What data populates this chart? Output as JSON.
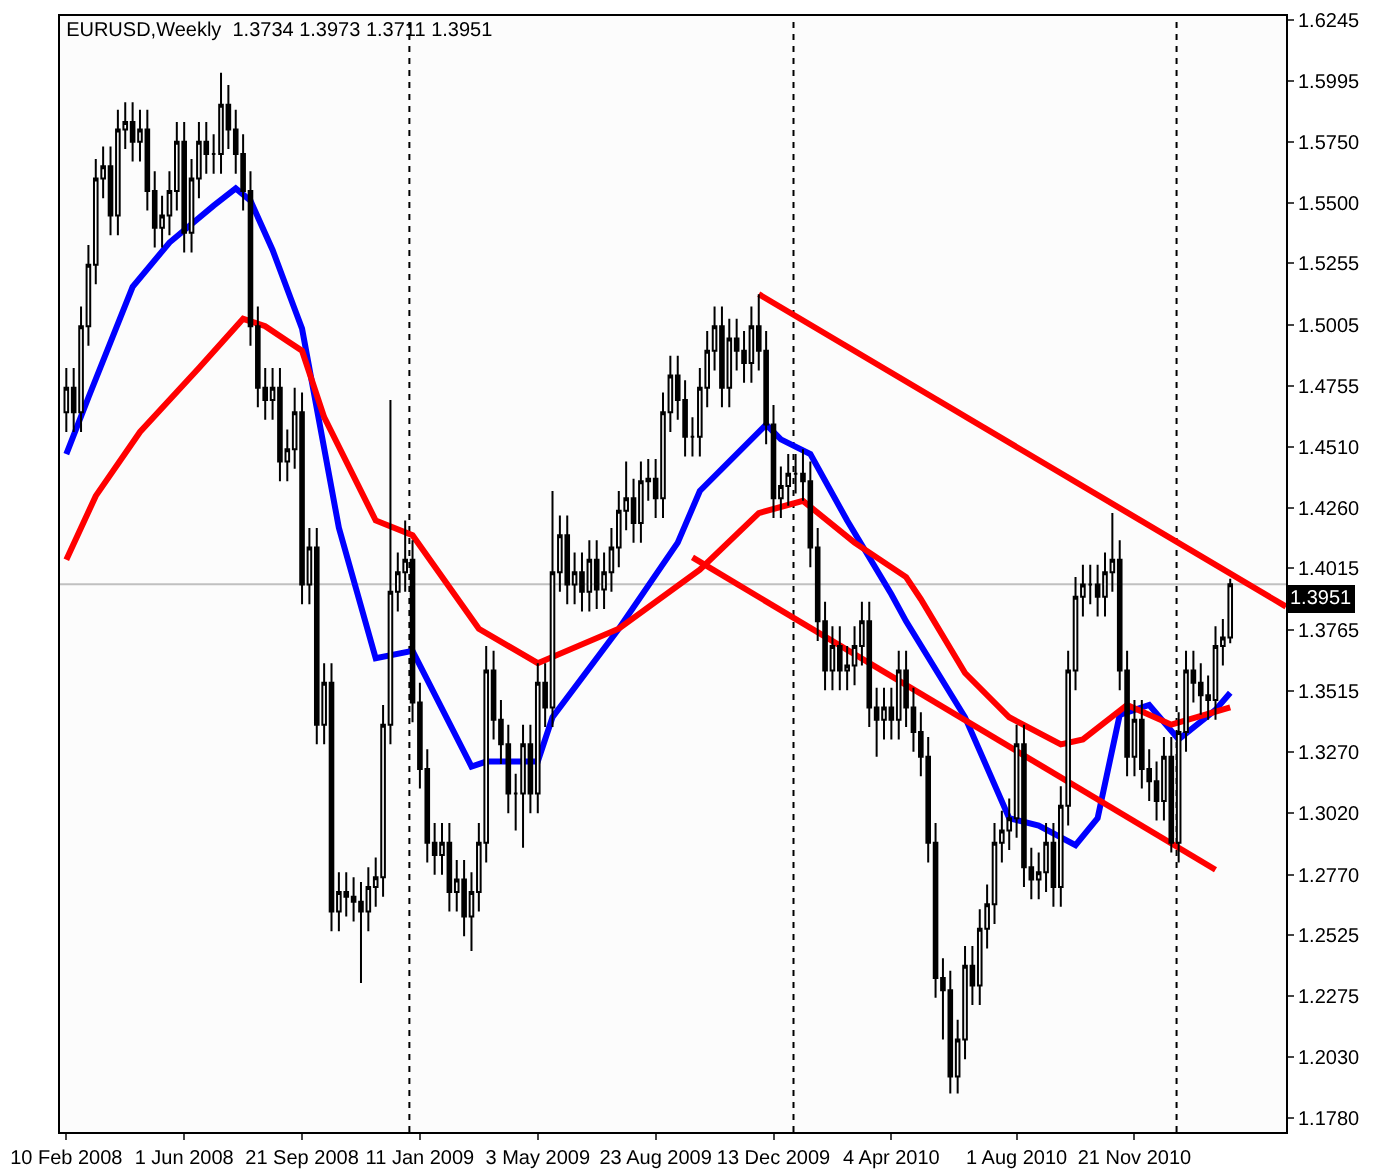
{
  "chart_data": {
    "type": "candlestick",
    "title": "EURUSD,Weekly  1.3734 1.3973 1.3711 1.3951",
    "color": "#000000",
    "x": [
      "2008-02-10",
      "2008-02-17",
      "2008-02-24",
      "2008-03-02",
      "2008-03-09",
      "2008-03-16",
      "2008-03-23",
      "2008-03-30",
      "2008-04-06",
      "2008-04-13",
      "2008-04-20",
      "2008-04-27",
      "2008-05-04",
      "2008-05-11",
      "2008-05-18",
      "2008-05-25",
      "2008-06-01",
      "2008-06-08",
      "2008-06-15",
      "2008-06-22",
      "2008-06-29",
      "2008-07-06",
      "2008-07-13",
      "2008-07-20",
      "2008-07-27",
      "2008-08-03",
      "2008-08-10",
      "2008-08-17",
      "2008-08-24",
      "2008-08-31",
      "2008-09-07",
      "2008-09-14",
      "2008-09-21",
      "2008-09-28",
      "2008-10-05",
      "2008-10-12",
      "2008-10-19",
      "2008-10-26",
      "2008-11-02",
      "2008-11-09",
      "2008-11-16",
      "2008-11-23",
      "2008-11-30",
      "2008-12-07",
      "2008-12-14",
      "2008-12-21",
      "2008-12-28",
      "2009-01-04",
      "2009-01-11",
      "2009-01-18",
      "2009-01-25",
      "2009-02-01",
      "2009-02-08",
      "2009-02-15",
      "2009-02-22",
      "2009-03-01",
      "2009-03-08",
      "2009-03-15",
      "2009-03-22",
      "2009-03-29",
      "2009-04-05",
      "2009-04-12",
      "2009-04-19",
      "2009-04-26",
      "2009-05-03",
      "2009-05-10",
      "2009-05-17",
      "2009-05-24",
      "2009-05-31",
      "2009-06-07",
      "2009-06-14",
      "2009-06-21",
      "2009-06-28",
      "2009-07-05",
      "2009-07-12",
      "2009-07-19",
      "2009-07-26",
      "2009-08-02",
      "2009-08-09",
      "2009-08-16",
      "2009-08-23",
      "2009-08-30",
      "2009-09-06",
      "2009-09-13",
      "2009-09-20",
      "2009-09-27",
      "2009-10-04",
      "2009-10-11",
      "2009-10-18",
      "2009-10-25",
      "2009-11-01",
      "2009-11-08",
      "2009-11-15",
      "2009-11-22",
      "2009-11-29",
      "2009-12-06",
      "2009-12-13",
      "2009-12-20",
      "2009-12-27",
      "2010-01-03",
      "2010-01-10",
      "2010-01-17",
      "2010-01-24",
      "2010-01-31",
      "2010-02-07",
      "2010-02-14",
      "2010-02-21",
      "2010-02-28",
      "2010-03-07",
      "2010-03-14",
      "2010-03-21",
      "2010-03-28",
      "2010-04-04",
      "2010-04-11",
      "2010-04-18",
      "2010-04-25",
      "2010-05-02",
      "2010-05-09",
      "2010-05-16",
      "2010-05-23",
      "2010-05-30",
      "2010-06-06",
      "2010-06-13",
      "2010-06-20",
      "2010-06-27",
      "2010-07-04",
      "2010-07-11",
      "2010-07-18",
      "2010-07-25",
      "2010-08-01",
      "2010-08-08",
      "2010-08-15",
      "2010-08-22",
      "2010-08-29",
      "2010-09-05",
      "2010-09-12",
      "2010-09-19",
      "2010-09-26",
      "2010-10-03",
      "2010-10-10",
      "2010-10-17",
      "2010-10-24",
      "2010-10-31",
      "2010-11-07",
      "2010-11-14",
      "2010-11-21",
      "2010-11-28",
      "2010-12-05",
      "2010-12-12",
      "2010-12-19",
      "2010-12-26",
      "2011-01-02",
      "2011-01-09",
      "2011-01-16",
      "2011-01-23",
      "2011-01-30",
      "2011-02-06",
      "2011-02-13",
      "2011-02-20"
    ],
    "ohlc": [
      [
        1.465,
        1.483,
        1.457,
        1.475
      ],
      [
        1.475,
        1.483,
        1.457,
        1.465
      ],
      [
        1.465,
        1.508,
        1.457,
        1.5
      ],
      [
        1.5,
        1.533,
        1.492,
        1.525
      ],
      [
        1.525,
        1.568,
        1.517,
        1.56
      ],
      [
        1.56,
        1.573,
        1.552,
        1.565
      ],
      [
        1.565,
        1.573,
        1.537,
        1.545
      ],
      [
        1.545,
        1.588,
        1.537,
        1.58
      ],
      [
        1.58,
        1.591,
        1.572,
        1.583
      ],
      [
        1.583,
        1.591,
        1.567,
        1.575
      ],
      [
        1.575,
        1.588,
        1.567,
        1.58
      ],
      [
        1.58,
        1.588,
        1.547,
        1.555
      ],
      [
        1.555,
        1.563,
        1.532,
        1.54
      ],
      [
        1.54,
        1.553,
        1.532,
        1.545
      ],
      [
        1.545,
        1.563,
        1.537,
        1.555
      ],
      [
        1.555,
        1.583,
        1.547,
        1.575
      ],
      [
        1.575,
        1.583,
        1.53,
        1.538
      ],
      [
        1.538,
        1.568,
        1.53,
        1.56
      ],
      [
        1.56,
        1.583,
        1.552,
        1.575
      ],
      [
        1.575,
        1.583,
        1.562,
        1.57
      ],
      [
        1.57,
        1.578,
        1.562,
        1.57
      ],
      [
        1.57,
        1.603,
        1.562,
        1.59
      ],
      [
        1.59,
        1.598,
        1.572,
        1.58
      ],
      [
        1.58,
        1.588,
        1.562,
        1.57
      ],
      [
        1.57,
        1.578,
        1.547,
        1.555
      ],
      [
        1.555,
        1.563,
        1.492,
        1.5
      ],
      [
        1.5,
        1.508,
        1.467,
        1.475
      ],
      [
        1.475,
        1.483,
        1.462,
        1.47
      ],
      [
        1.47,
        1.483,
        1.462,
        1.475
      ],
      [
        1.475,
        1.483,
        1.437,
        1.445
      ],
      [
        1.445,
        1.458,
        1.437,
        1.45
      ],
      [
        1.45,
        1.475,
        1.442,
        1.465
      ],
      [
        1.465,
        1.473,
        1.387,
        1.395
      ],
      [
        1.395,
        1.418,
        1.387,
        1.41
      ],
      [
        1.41,
        1.418,
        1.33,
        1.338
      ],
      [
        1.338,
        1.363,
        1.33,
        1.355
      ],
      [
        1.355,
        1.363,
        1.254,
        1.262
      ],
      [
        1.262,
        1.278,
        1.254,
        1.27
      ],
      [
        1.27,
        1.278,
        1.26,
        1.268
      ],
      [
        1.268,
        1.276,
        1.258,
        1.266
      ],
      [
        1.266,
        1.274,
        1.233,
        1.262
      ],
      [
        1.262,
        1.28,
        1.254,
        1.272
      ],
      [
        1.272,
        1.284,
        1.264,
        1.276
      ],
      [
        1.276,
        1.346,
        1.268,
        1.338
      ],
      [
        1.338,
        1.47,
        1.33,
        1.392
      ],
      [
        1.392,
        1.408,
        1.384,
        1.4
      ],
      [
        1.4,
        1.421,
        1.392,
        1.405
      ],
      [
        1.405,
        1.413,
        1.339,
        1.347
      ],
      [
        1.347,
        1.355,
        1.312,
        1.32
      ],
      [
        1.32,
        1.328,
        1.282,
        1.29
      ],
      [
        1.29,
        1.298,
        1.277,
        1.285
      ],
      [
        1.285,
        1.298,
        1.277,
        1.29
      ],
      [
        1.29,
        1.298,
        1.262,
        1.27
      ],
      [
        1.27,
        1.283,
        1.262,
        1.275
      ],
      [
        1.275,
        1.283,
        1.252,
        1.26
      ],
      [
        1.26,
        1.278,
        1.246,
        1.27
      ],
      [
        1.27,
        1.298,
        1.262,
        1.29
      ],
      [
        1.29,
        1.37,
        1.282,
        1.36
      ],
      [
        1.36,
        1.368,
        1.332,
        1.34
      ],
      [
        1.34,
        1.348,
        1.322,
        1.33
      ],
      [
        1.33,
        1.338,
        1.302,
        1.31
      ],
      [
        1.31,
        1.318,
        1.295,
        1.31
      ],
      [
        1.31,
        1.338,
        1.288,
        1.33
      ],
      [
        1.33,
        1.338,
        1.302,
        1.31
      ],
      [
        1.31,
        1.363,
        1.302,
        1.355
      ],
      [
        1.355,
        1.363,
        1.337,
        1.345
      ],
      [
        1.345,
        1.433,
        1.337,
        1.4
      ],
      [
        1.4,
        1.423,
        1.392,
        1.415
      ],
      [
        1.415,
        1.423,
        1.387,
        1.395
      ],
      [
        1.395,
        1.408,
        1.387,
        1.4
      ],
      [
        1.4,
        1.408,
        1.384,
        1.392
      ],
      [
        1.392,
        1.413,
        1.384,
        1.405
      ],
      [
        1.405,
        1.413,
        1.385,
        1.393
      ],
      [
        1.393,
        1.408,
        1.385,
        1.4
      ],
      [
        1.4,
        1.418,
        1.392,
        1.41
      ],
      [
        1.41,
        1.433,
        1.402,
        1.425
      ],
      [
        1.425,
        1.445,
        1.417,
        1.43
      ],
      [
        1.43,
        1.438,
        1.412,
        1.42
      ],
      [
        1.42,
        1.445,
        1.412,
        1.437
      ],
      [
        1.437,
        1.446,
        1.429,
        1.438
      ],
      [
        1.438,
        1.446,
        1.422,
        1.43
      ],
      [
        1.43,
        1.473,
        1.422,
        1.465
      ],
      [
        1.465,
        1.488,
        1.457,
        1.48
      ],
      [
        1.48,
        1.488,
        1.462,
        1.47
      ],
      [
        1.47,
        1.478,
        1.447,
        1.455
      ],
      [
        1.455,
        1.463,
        1.447,
        1.455
      ],
      [
        1.455,
        1.483,
        1.447,
        1.475
      ],
      [
        1.475,
        1.498,
        1.467,
        1.49
      ],
      [
        1.49,
        1.508,
        1.482,
        1.5
      ],
      [
        1.5,
        1.508,
        1.467,
        1.475
      ],
      [
        1.475,
        1.503,
        1.467,
        1.495
      ],
      [
        1.495,
        1.503,
        1.482,
        1.49
      ],
      [
        1.49,
        1.498,
        1.477,
        1.485
      ],
      [
        1.485,
        1.508,
        1.477,
        1.5
      ],
      [
        1.5,
        1.513,
        1.482,
        1.49
      ],
      [
        1.49,
        1.498,
        1.452,
        1.46
      ],
      [
        1.46,
        1.468,
        1.422,
        1.43
      ],
      [
        1.43,
        1.443,
        1.422,
        1.435
      ],
      [
        1.435,
        1.448,
        1.427,
        1.44
      ],
      [
        1.44,
        1.448,
        1.432,
        1.44
      ],
      [
        1.44,
        1.45,
        1.429,
        1.437
      ],
      [
        1.437,
        1.445,
        1.402,
        1.41
      ],
      [
        1.41,
        1.418,
        1.372,
        1.38
      ],
      [
        1.38,
        1.388,
        1.352,
        1.36
      ],
      [
        1.36,
        1.378,
        1.352,
        1.37
      ],
      [
        1.37,
        1.378,
        1.352,
        1.36
      ],
      [
        1.36,
        1.37,
        1.352,
        1.362
      ],
      [
        1.362,
        1.378,
        1.354,
        1.37
      ],
      [
        1.37,
        1.388,
        1.362,
        1.38
      ],
      [
        1.38,
        1.388,
        1.337,
        1.345
      ],
      [
        1.345,
        1.353,
        1.325,
        1.34
      ],
      [
        1.34,
        1.353,
        1.332,
        1.345
      ],
      [
        1.345,
        1.353,
        1.332,
        1.34
      ],
      [
        1.34,
        1.368,
        1.332,
        1.36
      ],
      [
        1.36,
        1.368,
        1.337,
        1.345
      ],
      [
        1.345,
        1.353,
        1.327,
        1.335
      ],
      [
        1.335,
        1.343,
        1.317,
        1.325
      ],
      [
        1.325,
        1.333,
        1.282,
        1.29
      ],
      [
        1.29,
        1.298,
        1.227,
        1.235
      ],
      [
        1.235,
        1.243,
        1.21,
        1.23
      ],
      [
        1.23,
        1.238,
        1.188,
        1.195
      ],
      [
        1.195,
        1.218,
        1.188,
        1.21
      ],
      [
        1.21,
        1.248,
        1.202,
        1.24
      ],
      [
        1.24,
        1.248,
        1.224,
        1.232
      ],
      [
        1.232,
        1.263,
        1.224,
        1.255
      ],
      [
        1.255,
        1.273,
        1.247,
        1.265
      ],
      [
        1.265,
        1.298,
        1.257,
        1.29
      ],
      [
        1.29,
        1.303,
        1.282,
        1.295
      ],
      [
        1.295,
        1.308,
        1.287,
        1.3
      ],
      [
        1.3,
        1.338,
        1.292,
        1.33
      ],
      [
        1.33,
        1.338,
        1.272,
        1.28
      ],
      [
        1.28,
        1.288,
        1.267,
        1.275
      ],
      [
        1.275,
        1.286,
        1.267,
        1.278
      ],
      [
        1.278,
        1.298,
        1.27,
        1.29
      ],
      [
        1.29,
        1.298,
        1.264,
        1.272
      ],
      [
        1.272,
        1.313,
        1.264,
        1.305
      ],
      [
        1.305,
        1.368,
        1.297,
        1.36
      ],
      [
        1.36,
        1.398,
        1.352,
        1.39
      ],
      [
        1.39,
        1.403,
        1.382,
        1.395
      ],
      [
        1.395,
        1.403,
        1.387,
        1.395
      ],
      [
        1.395,
        1.403,
        1.382,
        1.39
      ],
      [
        1.39,
        1.408,
        1.382,
        1.4
      ],
      [
        1.4,
        1.424,
        1.392,
        1.405
      ],
      [
        1.405,
        1.413,
        1.352,
        1.36
      ],
      [
        1.36,
        1.368,
        1.317,
        1.325
      ],
      [
        1.325,
        1.348,
        1.317,
        1.34
      ],
      [
        1.34,
        1.348,
        1.312,
        1.32
      ],
      [
        1.32,
        1.328,
        1.307,
        1.315
      ],
      [
        1.315,
        1.323,
        1.299,
        1.307
      ],
      [
        1.307,
        1.333,
        1.299,
        1.325
      ],
      [
        1.325,
        1.333,
        1.286,
        1.29
      ],
      [
        1.29,
        1.343,
        1.282,
        1.335
      ],
      [
        1.335,
        1.368,
        1.327,
        1.36
      ],
      [
        1.36,
        1.368,
        1.347,
        1.355
      ],
      [
        1.355,
        1.363,
        1.342,
        1.35
      ],
      [
        1.35,
        1.358,
        1.34,
        1.348
      ],
      [
        1.348,
        1.378,
        1.34,
        1.37
      ],
      [
        1.37,
        1.381,
        1.362,
        1.3734
      ],
      [
        1.3734,
        1.3973,
        1.3711,
        1.3951
      ]
    ],
    "series": [
      {
        "type": "line",
        "color": "#0000ff",
        "x": [
          "2008-02-10",
          "2008-03-02",
          "2008-04-13",
          "2008-05-18",
          "2008-06-29",
          "2008-07-20",
          "2008-08-03",
          "2008-08-24",
          "2008-09-14",
          "2008-09-21",
          "2008-10-26",
          "2008-11-30",
          "2009-01-04",
          "2009-03-01",
          "2009-03-15",
          "2009-05-03",
          "2009-05-17",
          "2009-07-19",
          "2009-09-13",
          "2009-10-04",
          "2009-12-06",
          "2009-12-20",
          "2010-01-17",
          "2010-02-21",
          "2010-04-04",
          "2010-04-18",
          "2010-06-13",
          "2010-07-25",
          "2010-08-22",
          "2010-09-26",
          "2010-10-17",
          "2010-11-07",
          "2010-12-05",
          "2011-01-02",
          "2011-02-06",
          "2011-02-20"
        ],
        "values": [
          1.448,
          1.471,
          1.516,
          1.534,
          1.549,
          1.556,
          1.551,
          1.531,
          1.507,
          1.499,
          1.418,
          1.365,
          1.368,
          1.321,
          1.323,
          1.323,
          1.341,
          1.377,
          1.412,
          1.433,
          1.46,
          1.454,
          1.448,
          1.421,
          1.391,
          1.38,
          1.341,
          1.3,
          1.297,
          1.289,
          1.3,
          1.342,
          1.346,
          1.332,
          1.344,
          1.351
        ]
      },
      {
        "type": "line",
        "color": "#ff0000",
        "x": [
          "2008-02-10",
          "2008-03-09",
          "2008-04-20",
          "2008-06-15",
          "2008-07-27",
          "2008-08-17",
          "2008-09-07",
          "2008-09-21",
          "2008-10-12",
          "2008-11-30",
          "2009-01-04",
          "2009-03-08",
          "2009-05-03",
          "2009-07-19",
          "2009-10-04",
          "2009-11-29",
          "2010-01-10",
          "2010-02-28",
          "2010-04-18",
          "2010-05-02",
          "2010-06-13",
          "2010-07-25",
          "2010-09-12",
          "2010-10-03",
          "2010-11-14",
          "2010-12-26",
          "2011-02-20"
        ],
        "values": [
          1.405,
          1.431,
          1.457,
          1.483,
          1.503,
          1.5,
          1.494,
          1.49,
          1.463,
          1.421,
          1.415,
          1.377,
          1.363,
          1.377,
          1.401,
          1.424,
          1.429,
          1.412,
          1.398,
          1.389,
          1.359,
          1.341,
          1.33,
          1.332,
          1.346,
          1.338,
          1.345
        ]
      },
      {
        "type": "line",
        "color": "#ff0000",
        "x": [
          "2009-11-29",
          "2011-04-14"
        ],
        "values": [
          1.513,
          1.386
        ]
      },
      {
        "type": "line",
        "color": "#ff0000",
        "x": [
          "2009-09-27",
          "2011-02-06"
        ],
        "values": [
          1.406,
          1.279
        ]
      }
    ],
    "xlim": [
      "2008-02-04",
      "2011-04-14"
    ],
    "ylim": [
      1.1724,
      1.6261
    ],
    "xticks": [
      {
        "value": "2008-02-10",
        "label": "10 Feb 2008"
      },
      {
        "value": "2008-06-01",
        "label": "1 Jun 2008"
      },
      {
        "value": "2008-09-21",
        "label": "21 Sep 2008"
      },
      {
        "value": "2009-01-11",
        "label": "11 Jan 2009"
      },
      {
        "value": "2009-05-03",
        "label": "3 May 2009"
      },
      {
        "value": "2009-08-23",
        "label": "23 Aug 2009"
      },
      {
        "value": "2009-12-13",
        "label": "13 Dec 2009"
      },
      {
        "value": "2010-04-04",
        "label": "4 Apr 2010"
      },
      {
        "value": "2010-08-01",
        "label": "1 Aug 2010"
      },
      {
        "value": "2010-11-21",
        "label": "21 Nov 2010"
      }
    ],
    "yticks": [
      1.6245,
      1.5995,
      {
        "value": 1.575,
        "label": "1.5750"
      },
      {
        "value": 1.55,
        "label": "1.5500"
      },
      1.5255,
      1.5005,
      1.4755,
      {
        "value": 1.451,
        "label": "1.4510"
      },
      {
        "value": 1.426,
        "label": "1.4260"
      },
      1.4015,
      1.3765,
      1.3515,
      {
        "value": 1.327,
        "label": "1.3270"
      },
      {
        "value": 1.302,
        "label": "1.3020"
      },
      {
        "value": 1.277,
        "label": "1.2770"
      },
      1.2525,
      1.2275,
      {
        "value": 1.203,
        "label": "1.2030"
      },
      {
        "value": 1.178,
        "label": "1.1780"
      }
    ],
    "ref_lines": [
      {
        "axis": "x",
        "value": "2009-01-01",
        "line_style": "dotted",
        "color": "#000000"
      },
      {
        "axis": "x",
        "value": "2010-01-01",
        "line_style": "dotted",
        "color": "#000000"
      },
      {
        "axis": "x",
        "value": "2010-12-31",
        "line_style": "dotted",
        "color": "#000000"
      },
      {
        "axis": "y",
        "value": 1.3951,
        "label": "1.3951",
        "color": "#c0c0c0"
      }
    ]
  }
}
